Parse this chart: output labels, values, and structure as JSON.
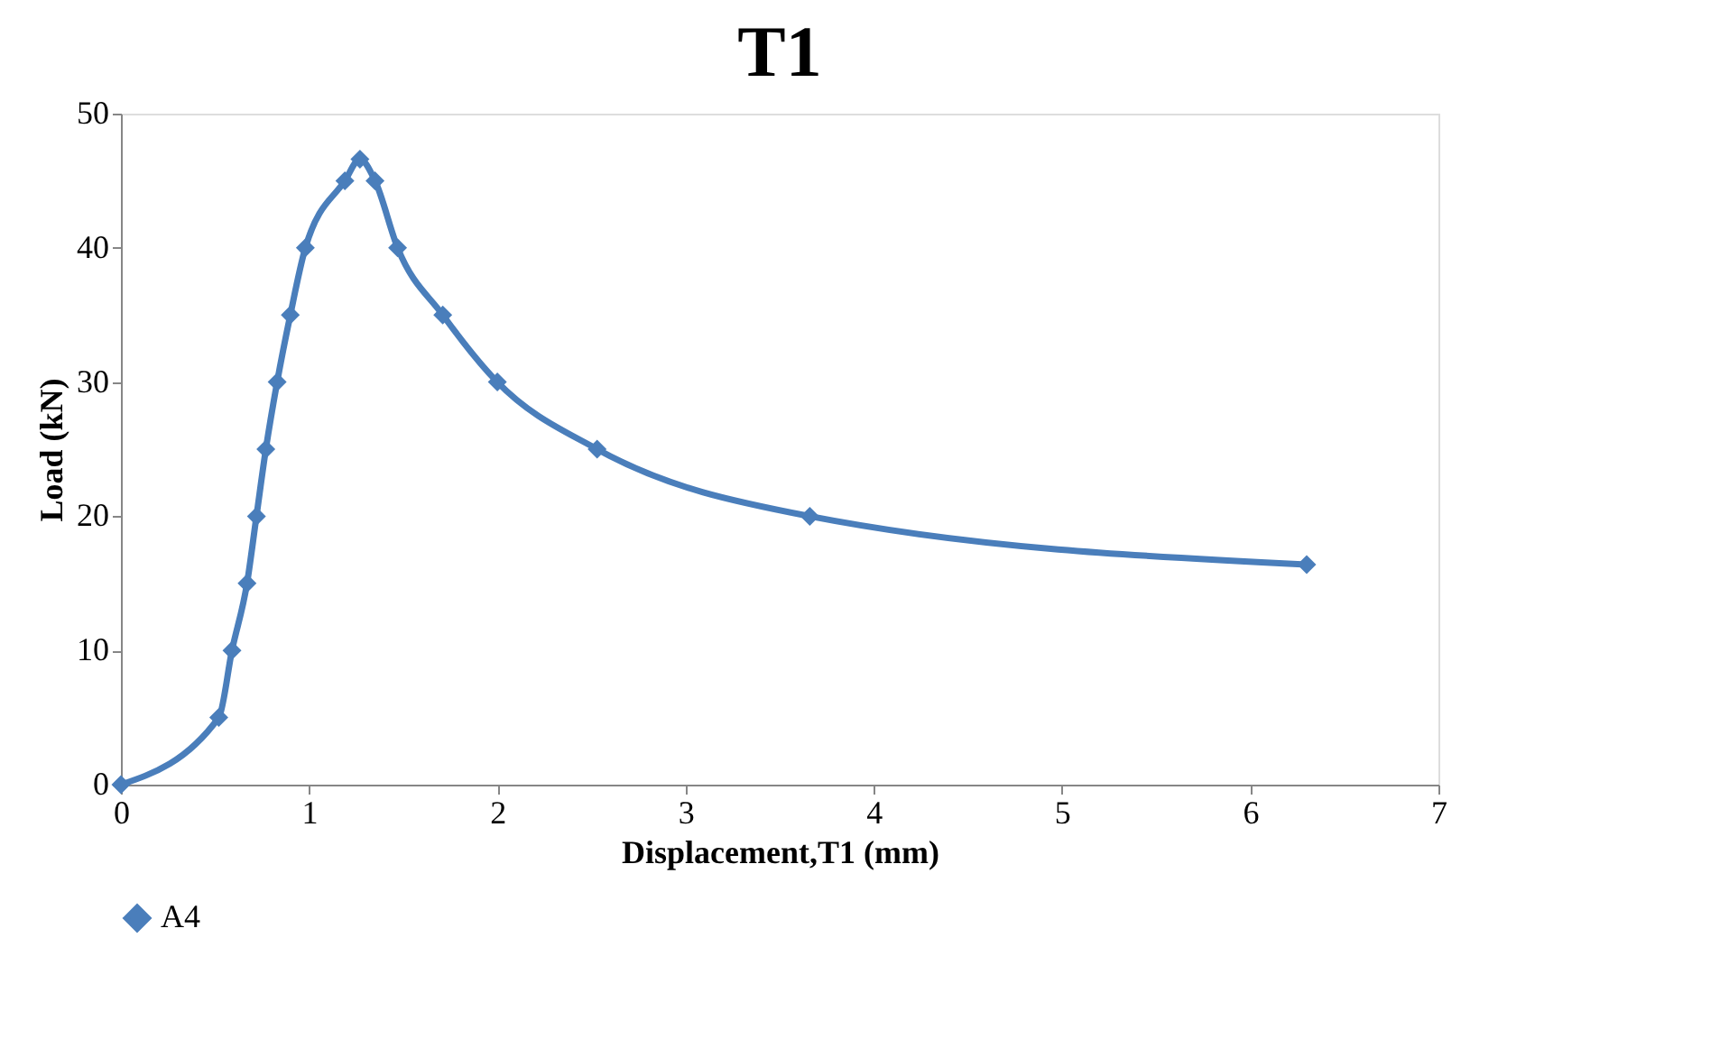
{
  "chart_data": {
    "type": "line",
    "title": "T1",
    "xlabel": "Displacement,T1 (mm)",
    "ylabel": "Load (kN)",
    "xlim": [
      0,
      7
    ],
    "xticks": [
      0,
      1,
      2,
      3,
      4,
      5,
      6,
      7
    ],
    "ylim": [
      0,
      50
    ],
    "yticks": [
      0,
      10,
      20,
      30,
      40,
      50
    ],
    "grid": false,
    "legend": "bottom",
    "marker": "diamond",
    "line_style": "solid",
    "series": [
      {
        "name": "A4",
        "color": "#4a7ebb",
        "x": [
          0,
          0.52,
          0.59,
          0.67,
          0.72,
          0.77,
          0.83,
          0.9,
          0.98,
          1.19,
          1.27,
          1.35,
          1.47,
          1.71,
          2.0,
          2.53,
          3.66,
          6.3
        ],
        "values": [
          0,
          5,
          10,
          15,
          20,
          25,
          30,
          35,
          40,
          45,
          46.6,
          45,
          40,
          35,
          30,
          25,
          20,
          16.4
        ]
      }
    ]
  }
}
